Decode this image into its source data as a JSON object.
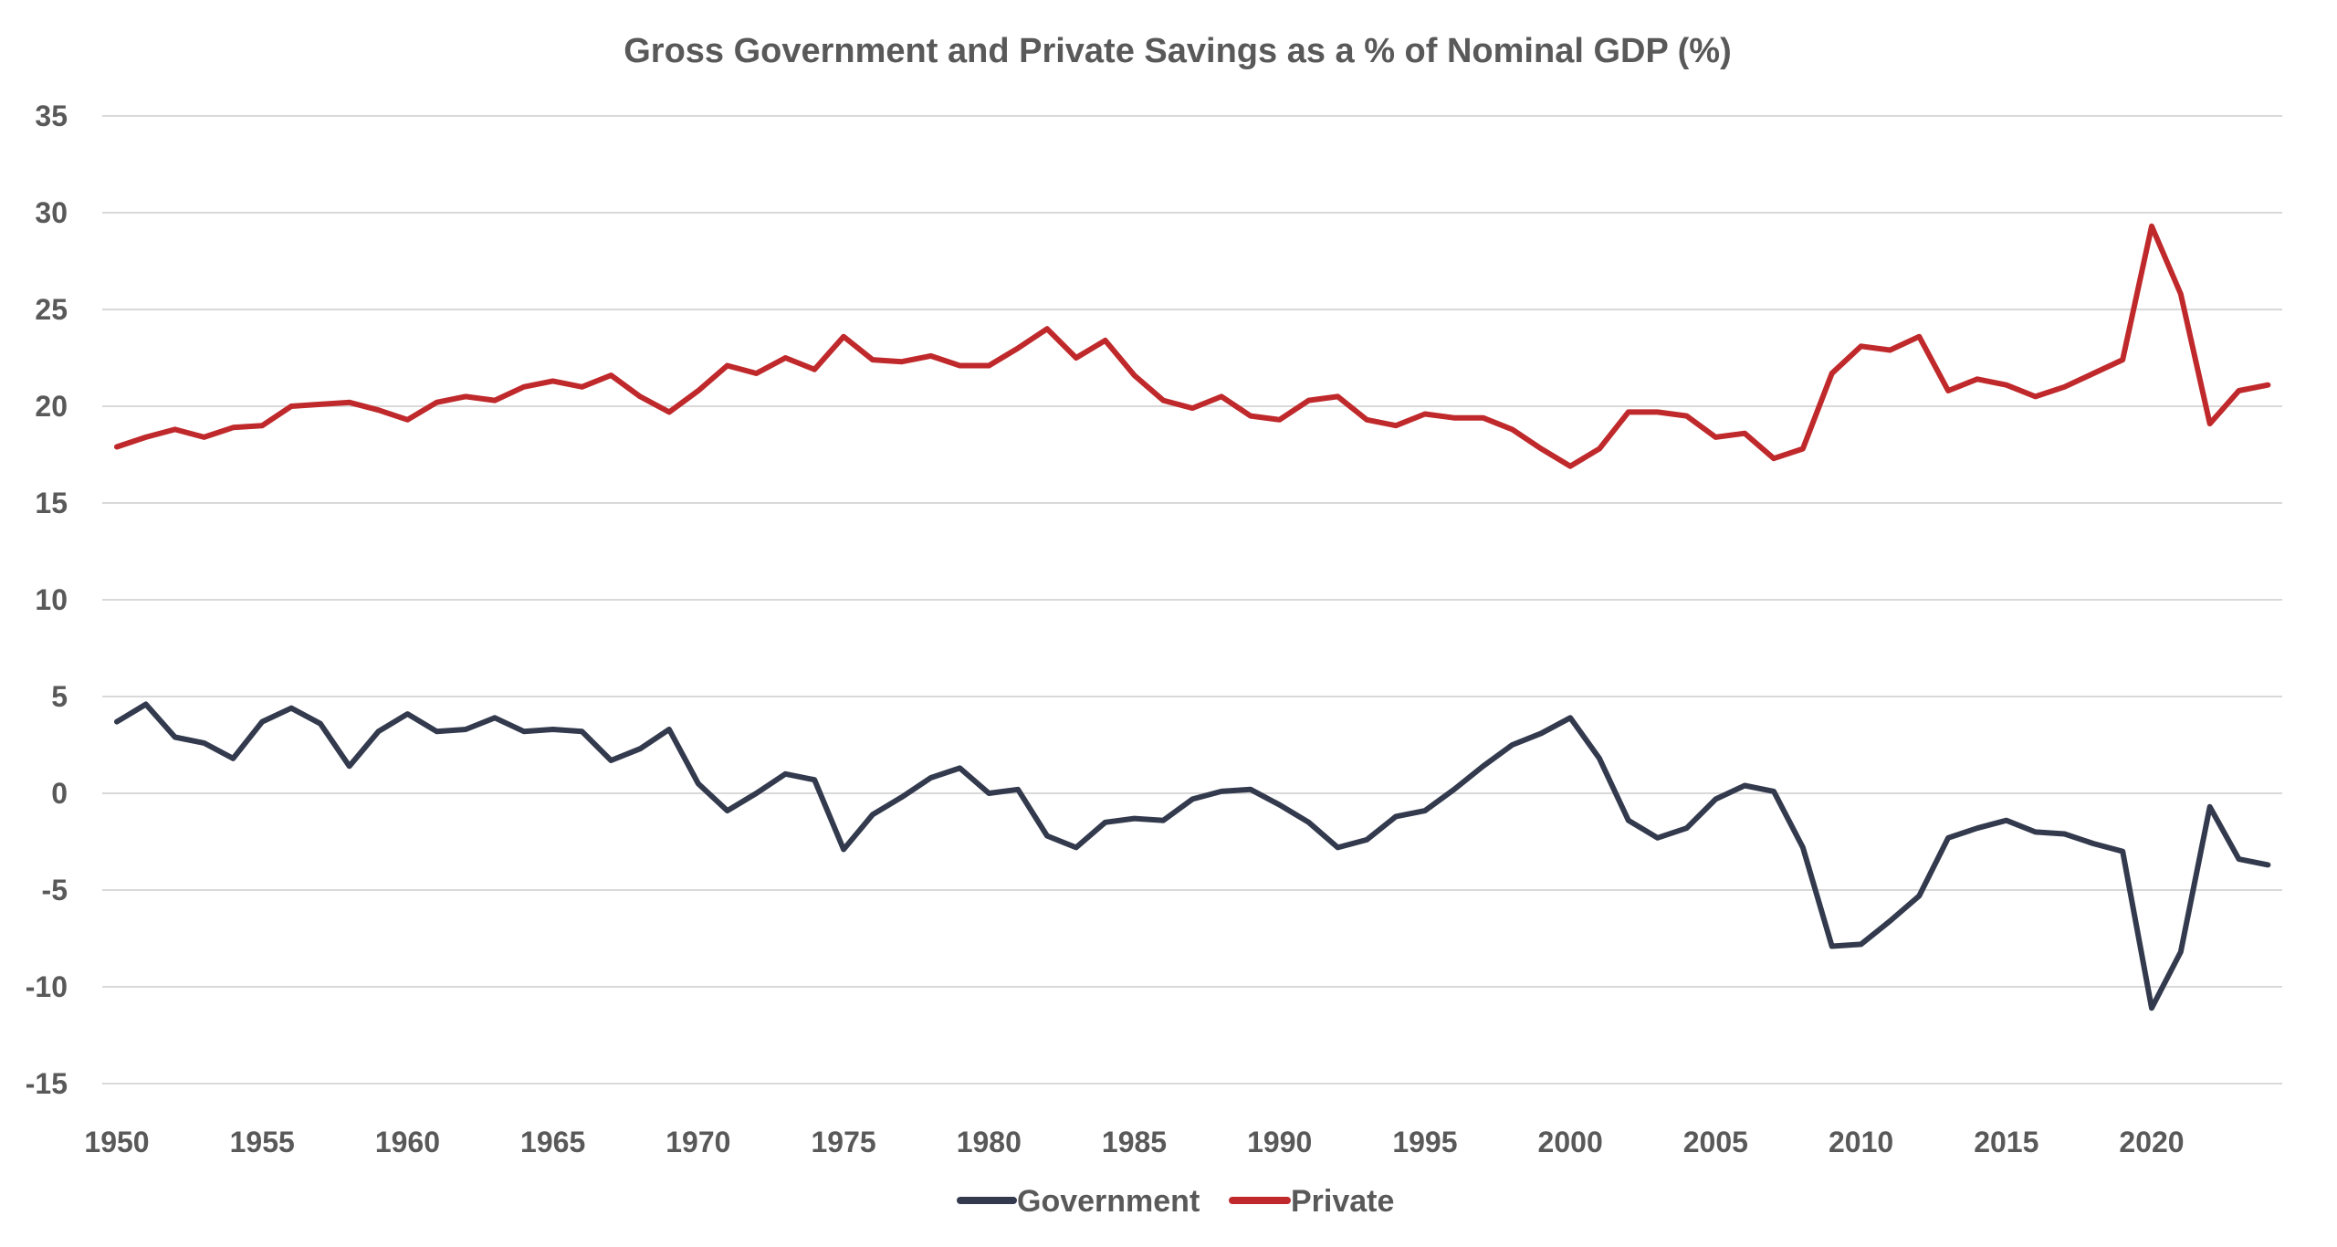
{
  "chart_data": {
    "type": "line",
    "title": "Gross Government and Private Savings as a % of Nominal GDP (%)",
    "xlabel": "",
    "ylabel": "",
    "ylim": [
      -15,
      35
    ],
    "yticks": [
      35,
      30,
      25,
      20,
      15,
      10,
      5,
      0,
      -5,
      -10,
      -15
    ],
    "xlim": [
      1950,
      2024
    ],
    "xticks": [
      1950,
      1955,
      1960,
      1965,
      1970,
      1975,
      1980,
      1985,
      1990,
      1995,
      2000,
      2005,
      2010,
      2015,
      2020
    ],
    "grid": true,
    "legend_position": "bottom-center",
    "x": [
      1950,
      1951,
      1952,
      1953,
      1954,
      1955,
      1956,
      1957,
      1958,
      1959,
      1960,
      1961,
      1962,
      1963,
      1964,
      1965,
      1966,
      1967,
      1968,
      1969,
      1970,
      1971,
      1972,
      1973,
      1974,
      1975,
      1976,
      1977,
      1978,
      1979,
      1980,
      1981,
      1982,
      1983,
      1984,
      1985,
      1986,
      1987,
      1988,
      1989,
      1990,
      1991,
      1992,
      1993,
      1994,
      1995,
      1996,
      1997,
      1998,
      1999,
      2000,
      2001,
      2002,
      2003,
      2004,
      2005,
      2006,
      2007,
      2008,
      2009,
      2010,
      2011,
      2012,
      2013,
      2014,
      2015,
      2016,
      2017,
      2018,
      2019,
      2020,
      2021,
      2022,
      2023,
      2024
    ],
    "series": [
      {
        "name": "Government",
        "color": "#333a4d",
        "values": [
          3.7,
          4.6,
          2.9,
          2.6,
          1.8,
          3.7,
          4.4,
          3.6,
          1.4,
          3.2,
          4.1,
          3.2,
          3.3,
          3.9,
          3.2,
          3.3,
          3.2,
          1.7,
          2.3,
          3.3,
          0.5,
          -0.9,
          0.0,
          1.0,
          0.7,
          -2.9,
          -1.1,
          -0.2,
          0.8,
          1.3,
          0.0,
          0.2,
          -2.2,
          -2.8,
          -1.5,
          -1.3,
          -1.4,
          -0.3,
          0.1,
          0.2,
          -0.6,
          -1.5,
          -2.8,
          -2.4,
          -1.2,
          -0.9,
          0.2,
          1.4,
          2.5,
          3.1,
          3.9,
          1.8,
          -1.4,
          -2.3,
          -1.8,
          -0.3,
          0.4,
          0.1,
          -2.8,
          -7.9,
          -7.8,
          -6.6,
          -5.3,
          -2.3,
          -1.8,
          -1.4,
          -2.0,
          -2.1,
          -2.6,
          -3.0,
          -11.1,
          -8.2,
          -0.7,
          -3.4,
          -3.7
        ]
      },
      {
        "name": "Private",
        "color": "#c0292b",
        "values": [
          17.9,
          18.4,
          18.8,
          18.4,
          18.9,
          19.0,
          20.0,
          20.1,
          20.2,
          19.8,
          19.3,
          20.2,
          20.5,
          20.3,
          21.0,
          21.3,
          21.0,
          21.6,
          20.5,
          19.7,
          20.8,
          22.1,
          21.7,
          22.5,
          21.9,
          23.6,
          22.4,
          22.3,
          22.6,
          22.1,
          22.1,
          23.0,
          24.0,
          22.5,
          23.4,
          21.6,
          20.3,
          19.9,
          20.5,
          19.5,
          19.3,
          20.3,
          20.5,
          19.3,
          19.0,
          19.6,
          19.4,
          19.4,
          18.8,
          17.8,
          16.9,
          17.8,
          19.7,
          19.7,
          19.5,
          18.4,
          18.6,
          17.3,
          17.8,
          21.7,
          23.1,
          22.9,
          23.6,
          20.8,
          21.4,
          21.1,
          20.5,
          21.0,
          21.7,
          22.4,
          29.3,
          25.8,
          19.1,
          20.8,
          21.1
        ]
      }
    ]
  }
}
